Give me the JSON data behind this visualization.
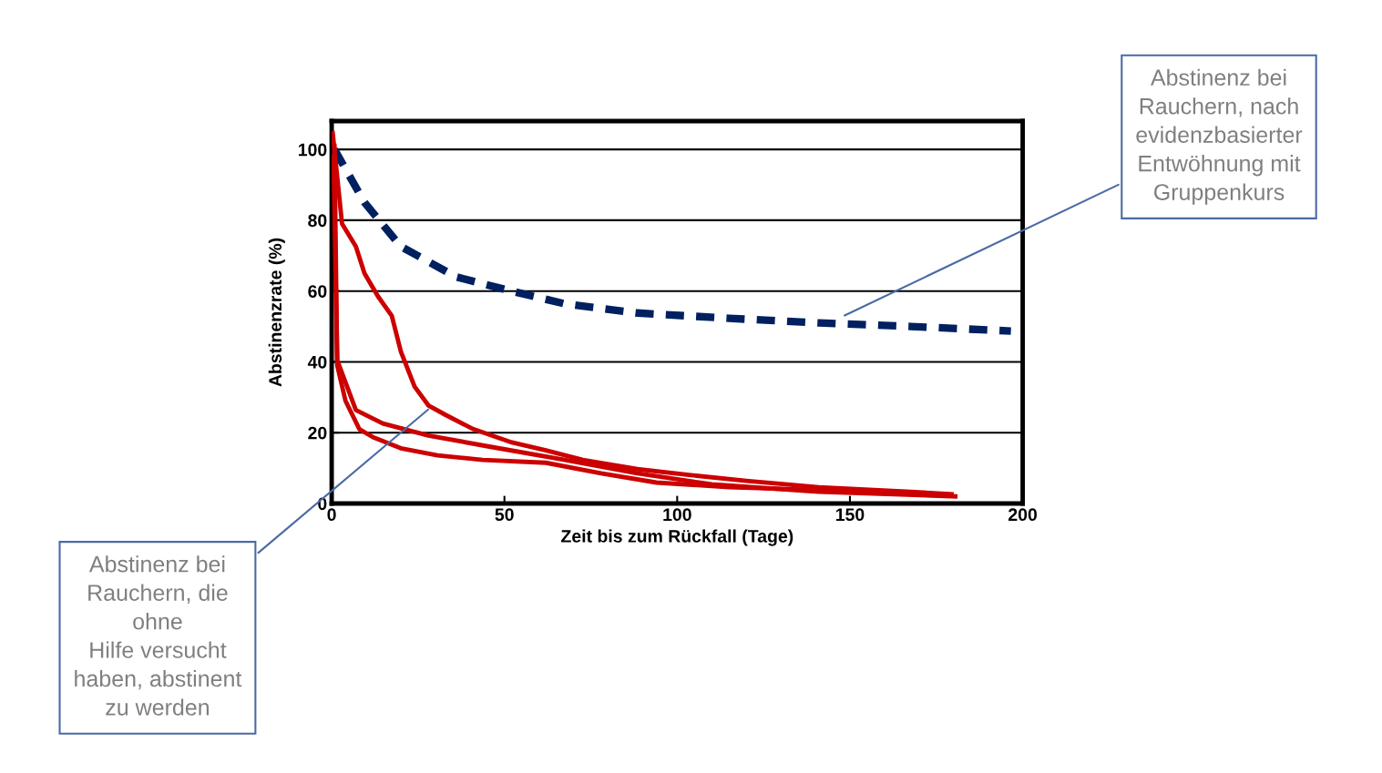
{
  "chart_data": {
    "type": "line",
    "xlabel": "Zeit bis zum Rückfall (Tage)",
    "ylabel": "Abstinenzrate (%)",
    "xlim": [
      0,
      200
    ],
    "xticks": [
      0,
      50,
      100,
      150,
      200
    ],
    "ylim": [
      0,
      108
    ],
    "yticks": [
      0,
      20,
      40,
      60,
      80,
      100
    ],
    "grid": "y",
    "legend": false,
    "marker": "none",
    "series": [
      {
        "color": "#002060",
        "line_style": "dashed",
        "x": [
          0.8,
          9.5,
          20,
          36,
          52,
          67.5,
          88.5,
          115,
          141,
          167.6,
          196.6
        ],
        "values": [
          100,
          85,
          72.6,
          64,
          60,
          56.4,
          53.8,
          52.3,
          51,
          50,
          48.7
        ]
      },
      {
        "color": "#cc0000",
        "line_style": "solid",
        "x": [
          0.3,
          3,
          7,
          9.5,
          13.4,
          17.4,
          20,
          24,
          28,
          33,
          41,
          51.6,
          62,
          72.7,
          88.5,
          104,
          120,
          141,
          167.6,
          179.4
        ],
        "values": [
          104.6,
          79,
          72.6,
          65,
          58.5,
          53,
          43,
          33,
          27.7,
          25,
          21,
          17.4,
          15,
          12.3,
          9.7,
          8,
          6.4,
          4.6,
          3.3,
          2.6
        ]
      },
      {
        "color": "#cc0000",
        "line_style": "solid",
        "x": [
          0.8,
          1.6,
          4,
          8,
          12,
          20,
          30.6,
          43.7,
          62,
          78,
          94,
          115,
          141,
          177
        ],
        "values": [
          101,
          39,
          29,
          21,
          18.7,
          15.6,
          13.6,
          12.3,
          11.5,
          8.5,
          5.9,
          4.6,
          3.8,
          2.6
        ]
      },
      {
        "color": "#cc0000",
        "line_style": "solid",
        "x": [
          0.5,
          1.6,
          7,
          14.8,
          28,
          46,
          67.5,
          88.5,
          110,
          141,
          180.5
        ],
        "values": [
          98,
          40.5,
          26.4,
          22.6,
          19.2,
          16,
          12.3,
          8.5,
          5.4,
          3.3,
          2
        ]
      }
    ],
    "annotations": [
      {
        "text": "Abstinenz bei\nRauchern, nach\nevidenzbasierter\nEntwöhnung mit\nGruppenkurs",
        "x": 147.8,
        "y": 52.8
      },
      {
        "text": "Abstinenz bei\nRauchern, die\nohne\nHilfe versucht\nhaben, abstinent\nzu werden",
        "x": 28.5,
        "y": 27
      }
    ]
  }
}
